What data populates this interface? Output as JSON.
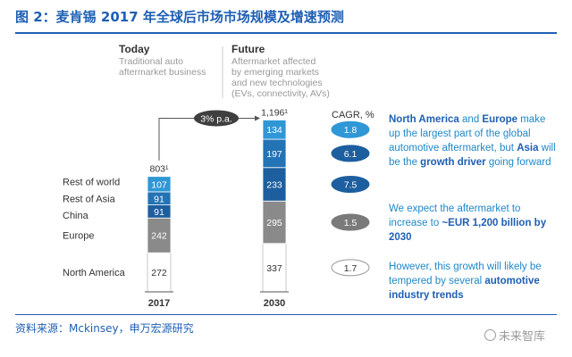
{
  "figure": {
    "title": "图 2：麦肯锡 2017 年全球后市场市场规模及增速预测",
    "source": "资料来源：Mckinsey，申万宏源研究",
    "watermark": "未来智库"
  },
  "chart_data": {
    "type": "bar",
    "stacked": true,
    "categories": [
      "2017",
      "2030"
    ],
    "series": [
      {
        "name": "North America",
        "values": [
          272,
          337
        ],
        "color": "#ffffff"
      },
      {
        "name": "Europe",
        "values": [
          242,
          295
        ],
        "color": "#8a8a8a"
      },
      {
        "name": "China",
        "values": [
          91,
          233
        ],
        "color": "#1d5f9e"
      },
      {
        "name": "Rest of Asia",
        "values": [
          91,
          197
        ],
        "color": "#2373b5"
      },
      {
        "name": "Rest of world",
        "values": [
          107,
          134
        ],
        "color": "#2f97d6"
      }
    ],
    "totals": [
      "803¹",
      "1,196¹"
    ],
    "x_tick_labels": [
      "2017",
      "2030"
    ],
    "growth_label": "3% p.a.",
    "cagr": {
      "header": "CAGR, %",
      "values": [
        "1.7",
        "1.5",
        "7.5",
        "6.1",
        "1.8"
      ]
    },
    "headings": {
      "today_title": "Today",
      "today_sub": [
        "Traditional auto",
        "aftermarket business"
      ],
      "future_title": "Future",
      "future_sub": [
        "Aftermarket affected",
        "by emerging markets",
        "and new technologies",
        "(EVs, connectivity, AVs)"
      ]
    }
  },
  "side_notes": [
    {
      "parts": [
        {
          "t": "North America",
          "b": true
        },
        {
          "t": " and ",
          "b": false
        },
        {
          "t": "Europe",
          "b": true
        },
        {
          "t": " make up the largest part of the global automotive aftermarket, but ",
          "b": false
        },
        {
          "t": "Asia",
          "b": true
        },
        {
          "t": " will be the ",
          "b": false
        },
        {
          "t": "growth driver",
          "b": true
        },
        {
          "t": " going forward",
          "b": false
        }
      ]
    },
    {
      "parts": [
        {
          "t": "We expect the aftermarket to increase to ",
          "b": false
        },
        {
          "t": "~EUR 1,200 billion by 2030",
          "b": true
        }
      ]
    },
    {
      "parts": [
        {
          "t": "However, this growth will likely be tempered by several ",
          "b": false
        },
        {
          "t": "automotive industry trends",
          "b": true
        }
      ]
    }
  ]
}
